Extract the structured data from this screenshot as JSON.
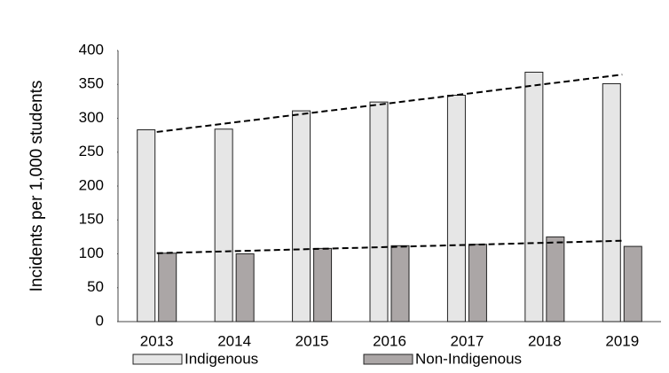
{
  "chart_data": {
    "type": "bar",
    "y_label": "Incidents per 1,000 students",
    "categories": [
      "2013",
      "2014",
      "2015",
      "2016",
      "2017",
      "2018",
      "2019"
    ],
    "series": [
      {
        "name": "Indigenous",
        "color": "#e6e6e6",
        "values": [
          283,
          284,
          311,
          324,
          334,
          368,
          351
        ],
        "trendline": true
      },
      {
        "name": "Non-Indigenous",
        "color": "#aba6a6",
        "values": [
          101,
          100,
          108,
          112,
          114,
          125,
          111
        ],
        "trendline": true
      }
    ],
    "ylim": [
      0,
      400
    ],
    "yticks": [
      0,
      50,
      100,
      150,
      200,
      250,
      300,
      350,
      400
    ],
    "grid": false,
    "legend": "bottom"
  }
}
